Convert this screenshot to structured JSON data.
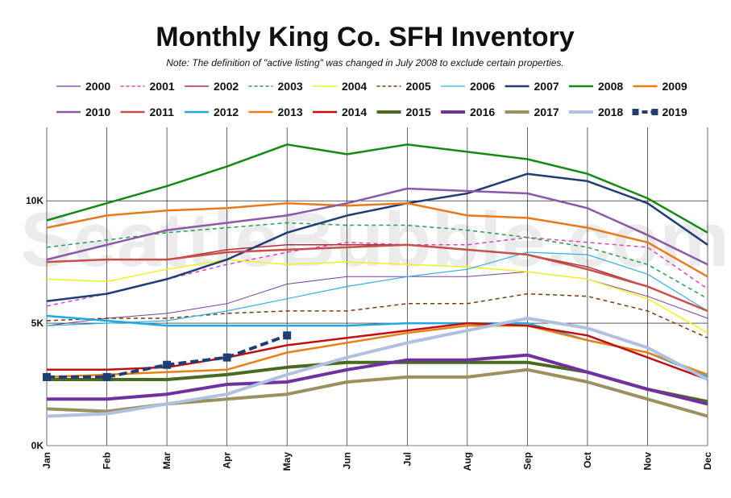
{
  "chart_data": {
    "type": "line",
    "title": "Monthly King Co. SFH Inventory",
    "subtitle": "Note: The definition of \"active listing\" was changed in July 2008 to exclude certain properties.",
    "watermark": "SeattleBubble.com",
    "xlabel": "",
    "ylabel": "",
    "categories": [
      "Jan",
      "Feb",
      "Mar",
      "Apr",
      "May",
      "Jun",
      "Jul",
      "Aug",
      "Sep",
      "Oct",
      "Nov",
      "Dec"
    ],
    "ylim": [
      0,
      13000
    ],
    "yticks": [
      {
        "value": 0,
        "label": "0K"
      },
      {
        "value": 5000,
        "label": "5K"
      },
      {
        "value": 10000,
        "label": "10K"
      }
    ],
    "grid": true,
    "legend_position": "top",
    "series": [
      {
        "name": "2000",
        "color": "#7b3f9e",
        "dash": "solid",
        "width": 1,
        "markers": false,
        "values": [
          4900,
          5200,
          5400,
          5800,
          6600,
          6900,
          6900,
          6900,
          7100,
          6800,
          6100,
          5200
        ]
      },
      {
        "name": "2001",
        "color": "#e040c0",
        "dash": "dash",
        "width": 1.5,
        "markers": false,
        "values": [
          5700,
          6200,
          6800,
          7400,
          7900,
          8300,
          8200,
          8200,
          8500,
          8300,
          8100,
          6400
        ]
      },
      {
        "name": "2002",
        "color": "#b03040",
        "dash": "solid",
        "width": 1.5,
        "markers": false,
        "values": [
          7500,
          7600,
          7600,
          8000,
          8200,
          8200,
          8200,
          8000,
          7800,
          7300,
          6500,
          5500
        ]
      },
      {
        "name": "2003",
        "color": "#20a050",
        "dash": "dash",
        "width": 1.5,
        "markers": false,
        "values": [
          8100,
          8400,
          8700,
          8900,
          9100,
          9000,
          9000,
          8800,
          8500,
          8100,
          7400,
          6000
        ]
      },
      {
        "name": "2004",
        "color": "#f0f020",
        "dash": "solid",
        "width": 1.5,
        "markers": false,
        "values": [
          6800,
          6700,
          7200,
          7600,
          7400,
          7500,
          7400,
          7300,
          7100,
          6800,
          6000,
          4600
        ]
      },
      {
        "name": "2005",
        "color": "#7a3a10",
        "dash": "dash",
        "width": 1.5,
        "markers": false,
        "values": [
          5100,
          5200,
          5200,
          5400,
          5500,
          5500,
          5800,
          5800,
          6200,
          6100,
          5500,
          4400
        ]
      },
      {
        "name": "2006",
        "color": "#30b0e0",
        "dash": "solid",
        "width": 1.2,
        "markers": false,
        "values": [
          4900,
          5000,
          5100,
          5500,
          6000,
          6500,
          6900,
          7200,
          7900,
          7800,
          7000,
          5500
        ]
      },
      {
        "name": "2007",
        "color": "#1f3f73",
        "dash": "solid",
        "width": 2.5,
        "markers": false,
        "values": [
          5900,
          6200,
          6800,
          7600,
          8700,
          9400,
          9900,
          10300,
          11100,
          10800,
          9900,
          8200
        ]
      },
      {
        "name": "2008",
        "color": "#138a13",
        "dash": "solid",
        "width": 2.5,
        "markers": false,
        "values": [
          9200,
          9900,
          10600,
          11400,
          12300,
          11900,
          12300,
          12000,
          11700,
          11100,
          10100,
          8700
        ]
      },
      {
        "name": "2009",
        "color": "#e87a1a",
        "dash": "solid",
        "width": 2.5,
        "markers": false,
        "values": [
          8900,
          9400,
          9600,
          9700,
          9900,
          9800,
          9900,
          9400,
          9300,
          8900,
          8300,
          6900
        ]
      },
      {
        "name": "2010",
        "color": "#8a5aa8",
        "dash": "solid",
        "width": 2.5,
        "markers": false,
        "values": [
          7600,
          8200,
          8800,
          9100,
          9400,
          9900,
          10500,
          10400,
          10300,
          9700,
          8600,
          7400
        ]
      },
      {
        "name": "2011",
        "color": "#c8504a",
        "dash": "solid",
        "width": 2.5,
        "markers": false,
        "values": [
          7500,
          7600,
          7600,
          7900,
          8000,
          8100,
          8200,
          8000,
          7800,
          7200,
          6500,
          5500
        ]
      },
      {
        "name": "2012",
        "color": "#20a8e0",
        "dash": "solid",
        "width": 2.5,
        "markers": false,
        "values": [
          5300,
          5100,
          4900,
          4900,
          4900,
          4900,
          5000,
          5000,
          5000,
          4300,
          3800,
          2800
        ]
      },
      {
        "name": "2013",
        "color": "#e88018",
        "dash": "solid",
        "width": 2.5,
        "markers": false,
        "values": [
          2800,
          2900,
          3000,
          3100,
          3800,
          4200,
          4600,
          4900,
          4900,
          4300,
          3800,
          2900
        ]
      },
      {
        "name": "2014",
        "color": "#c01010",
        "dash": "solid",
        "width": 2.5,
        "markers": false,
        "values": [
          3100,
          3100,
          3200,
          3600,
          4100,
          4400,
          4700,
          5000,
          4900,
          4500,
          3600,
          2700
        ]
      },
      {
        "name": "2015",
        "color": "#4a6a20",
        "dash": "solid",
        "width": 4,
        "markers": false,
        "values": [
          2700,
          2700,
          2700,
          2900,
          3200,
          3400,
          3400,
          3400,
          3400,
          3000,
          2300,
          1800
        ]
      },
      {
        "name": "2016",
        "color": "#7030a0",
        "dash": "solid",
        "width": 4,
        "markers": false,
        "values": [
          1900,
          1900,
          2100,
          2500,
          2600,
          3100,
          3500,
          3500,
          3700,
          3000,
          2300,
          1700
        ]
      },
      {
        "name": "2017",
        "color": "#9a9060",
        "dash": "solid",
        "width": 4,
        "markers": false,
        "values": [
          1500,
          1400,
          1700,
          1900,
          2100,
          2600,
          2800,
          2800,
          3100,
          2600,
          1900,
          1200
        ]
      },
      {
        "name": "2018",
        "color": "#b0c0e0",
        "dash": "solid",
        "width": 4,
        "markers": false,
        "values": [
          1200,
          1300,
          1700,
          2100,
          2900,
          3600,
          4200,
          4700,
          5200,
          4800,
          4000,
          2700
        ]
      },
      {
        "name": "2019",
        "color": "#1f3f73",
        "dash": "dash",
        "width": 4,
        "markers": true,
        "values": [
          2800,
          2800,
          3300,
          3600,
          4500,
          null,
          null,
          null,
          null,
          null,
          null,
          null
        ]
      }
    ]
  }
}
